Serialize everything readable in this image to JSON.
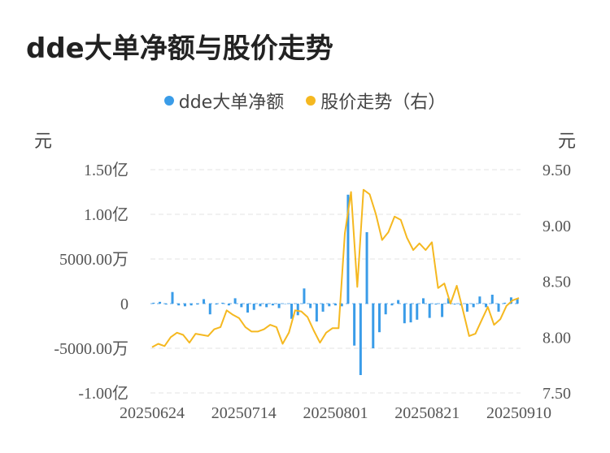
{
  "chart_data": {
    "type": "bar",
    "title": "dde大单净额与股价走势",
    "legend_position": "top",
    "grid": true,
    "left_unit": "元",
    "right_unit": "元",
    "left_ticks": [
      "1.50亿",
      "1.00亿",
      "5000.00万",
      "0",
      "-5000.00万",
      "-1.00亿"
    ],
    "right_ticks": [
      "9.50",
      "9.00",
      "8.50",
      "8.00",
      "7.50"
    ],
    "x_ticks": [
      "20250624",
      "20250714",
      "20250801",
      "20250821",
      "20250910"
    ],
    "ylim_left": [
      -100000000,
      150000000
    ],
    "ylim_right": [
      7.5,
      9.5
    ],
    "series": [
      {
        "name": "dde大单净额",
        "type": "bar",
        "axis": "left",
        "color": "#3a9ce8",
        "values": [
          1000000,
          2000000,
          -1000000,
          13000000,
          -2000000,
          -3000000,
          -2000000,
          -1000000,
          5000000,
          -12000000,
          -1000000,
          1000000,
          -2000000,
          6000000,
          -4000000,
          -10000000,
          -7000000,
          -3000000,
          -4000000,
          -2000000,
          -5000000,
          0,
          -17000000,
          -13000000,
          17000000,
          -5000000,
          -20000000,
          -9000000,
          -3000000,
          -2000000,
          -3000000,
          122000000,
          -47000000,
          -80000000,
          80000000,
          -50000000,
          -32000000,
          -12000000,
          -2000000,
          4000000,
          -22000000,
          -21000000,
          -18000000,
          6000000,
          -16000000,
          -1000000,
          -15000000,
          6000000,
          -1000000,
          -2000000,
          -9000000,
          -4000000,
          8000000,
          -4000000,
          10000000,
          -9000000,
          1000000,
          7000000,
          5000000
        ]
      },
      {
        "name": "股价走势（右）",
        "type": "line",
        "axis": "right",
        "color": "#f5b820",
        "values": [
          7.91,
          7.94,
          7.92,
          8.0,
          8.04,
          8.02,
          7.95,
          8.03,
          8.02,
          8.01,
          8.07,
          8.09,
          8.24,
          8.2,
          8.17,
          8.09,
          8.05,
          8.05,
          8.07,
          8.11,
          8.09,
          7.94,
          8.04,
          8.24,
          8.23,
          8.18,
          8.06,
          7.95,
          8.04,
          8.08,
          8.08,
          8.93,
          9.3,
          8.45,
          9.32,
          9.28,
          9.1,
          8.87,
          8.94,
          9.08,
          9.05,
          8.89,
          8.78,
          8.84,
          8.78,
          8.85,
          8.44,
          8.48,
          8.3,
          8.46,
          8.24,
          8.01,
          8.03,
          8.15,
          8.27,
          8.11,
          8.16,
          8.28,
          8.33,
          8.35
        ]
      }
    ]
  }
}
